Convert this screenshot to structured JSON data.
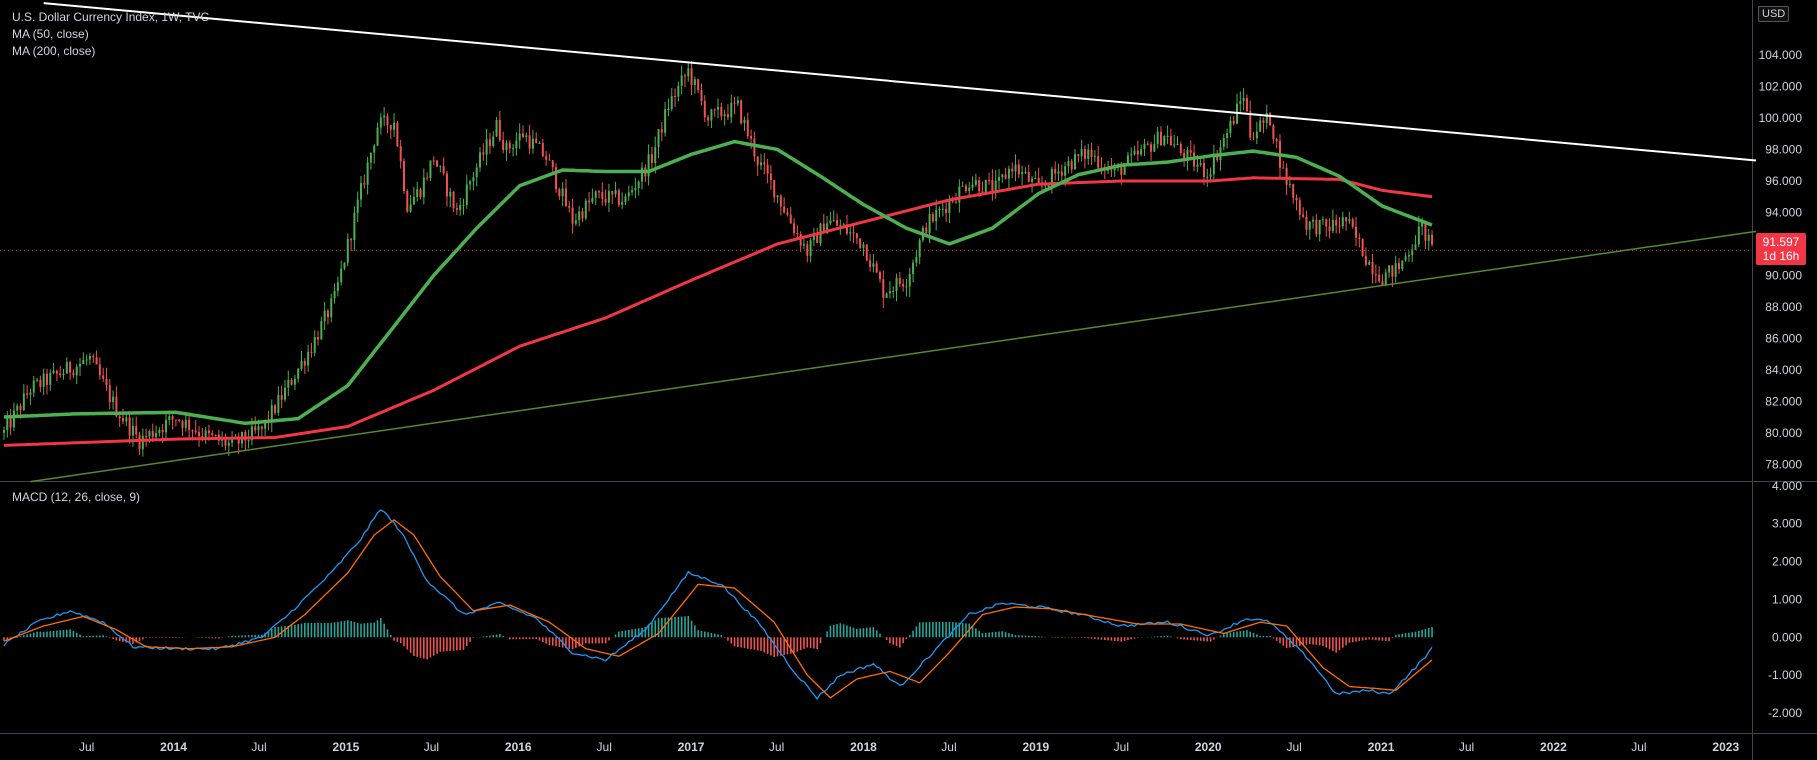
{
  "legend": {
    "symbol": "U.S. Dollar Currency Index, 1W, TVC",
    "ma50": "MA (50, close)",
    "ma200": "MA (200, close)",
    "macd": "MACD (12, 26, close, 9)"
  },
  "currency_button": "USD",
  "last_price": {
    "value": "91.597",
    "countdown": "1d 16h"
  },
  "colors": {
    "background": "#000000",
    "candle_up": "#4caf50",
    "candle_down": "#ef5350",
    "ma50": "#4caf50",
    "ma200": "#f23645",
    "trendline_upper": "#ffffff",
    "trendline_lower": "#558b2f",
    "macd_line": "#2196f3",
    "signal_line": "#ff6d00",
    "hist_pos": "#26a69a",
    "hist_neg": "#ef5350",
    "last_price": "#f23645",
    "axis_text": "#d1d4dc"
  },
  "chart_data": [
    {
      "type": "candlestick",
      "title": "U.S. Dollar Currency Index, 1W, TVC",
      "y_axis_ticks": [
        "104.000",
        "102.000",
        "100.000",
        "98.000",
        "96.000",
        "94.000",
        "92.000",
        "90.000",
        "88.000",
        "86.000",
        "84.000",
        "82.000",
        "80.000",
        "78.000"
      ],
      "ylim": [
        77,
        107.5
      ],
      "x_axis_ticks": [
        "Jul",
        "2014",
        "Jul",
        "2015",
        "Jul",
        "2016",
        "Jul",
        "2017",
        "Jul",
        "2018",
        "Jul",
        "2019",
        "Jul",
        "2020",
        "Jul",
        "2021",
        "Jul",
        "2022",
        "Jul",
        "2023"
      ],
      "x_anchor": {
        "start_week": "2013-01-07",
        "end_visible_week": "2023-03-06"
      },
      "price_path": [
        [
          "2013-01-07",
          80.0
        ],
        [
          "2013-03-04",
          82.8
        ],
        [
          "2013-05-20",
          84.0
        ],
        [
          "2013-07-08",
          84.7
        ],
        [
          "2013-09-02",
          81.5
        ],
        [
          "2013-10-21",
          79.5
        ],
        [
          "2014-01-06",
          81.0
        ],
        [
          "2014-03-10",
          79.8
        ],
        [
          "2014-05-05",
          79.2
        ],
        [
          "2014-07-07",
          80.2
        ],
        [
          "2014-09-01",
          83.0
        ],
        [
          "2014-10-20",
          85.5
        ],
        [
          "2014-12-08",
          88.5
        ],
        [
          "2015-01-26",
          94.5
        ],
        [
          "2015-03-09",
          99.5
        ],
        [
          "2015-04-13",
          99.8
        ],
        [
          "2015-05-11",
          94.5
        ],
        [
          "2015-06-08",
          95.5
        ],
        [
          "2015-07-06",
          97.5
        ],
        [
          "2015-08-24",
          94.0
        ],
        [
          "2015-09-21",
          96.0
        ],
        [
          "2015-11-16",
          99.5
        ],
        [
          "2015-12-07",
          98.0
        ],
        [
          "2016-01-11",
          99.0
        ],
        [
          "2016-02-29",
          97.5
        ],
        [
          "2016-04-25",
          93.5
        ],
        [
          "2016-06-13",
          95.0
        ],
        [
          "2016-08-15",
          94.8
        ],
        [
          "2016-10-10",
          97.5
        ],
        [
          "2016-11-14",
          100.8
        ],
        [
          "2016-12-26",
          103.0
        ],
        [
          "2017-02-06",
          100.0
        ],
        [
          "2017-04-10",
          100.7
        ],
        [
          "2017-05-22",
          97.3
        ],
        [
          "2017-06-26",
          95.5
        ],
        [
          "2017-08-07",
          93.0
        ],
        [
          "2017-09-04",
          91.5
        ],
        [
          "2017-10-16",
          93.5
        ],
        [
          "2017-11-20",
          93.0
        ],
        [
          "2018-01-01",
          92.0
        ],
        [
          "2018-02-12",
          89.0
        ],
        [
          "2018-04-02",
          89.8
        ],
        [
          "2018-05-14",
          93.2
        ],
        [
          "2018-06-25",
          94.5
        ],
        [
          "2018-08-13",
          96.0
        ],
        [
          "2018-10-08",
          95.5
        ],
        [
          "2018-11-12",
          97.0
        ],
        [
          "2019-01-07",
          95.5
        ],
        [
          "2019-03-04",
          97.0
        ],
        [
          "2019-04-22",
          97.8
        ],
        [
          "2019-06-17",
          96.5
        ],
        [
          "2019-08-12",
          97.8
        ],
        [
          "2019-09-30",
          99.0
        ],
        [
          "2019-11-04",
          97.8
        ],
        [
          "2019-12-30",
          96.5
        ],
        [
          "2020-02-17",
          99.5
        ],
        [
          "2020-03-16",
          101.5
        ],
        [
          "2020-03-30",
          99.0
        ],
        [
          "2020-05-11",
          100.0
        ],
        [
          "2020-06-08",
          96.5
        ],
        [
          "2020-07-27",
          93.3
        ],
        [
          "2020-09-07",
          93.0
        ],
        [
          "2020-10-19",
          93.5
        ],
        [
          "2020-12-07",
          90.8
        ],
        [
          "2021-01-04",
          89.9
        ],
        [
          "2021-02-08",
          90.5
        ],
        [
          "2021-03-29",
          93.1
        ],
        [
          "2021-04-19",
          91.597
        ]
      ],
      "series": [
        {
          "name": "MA (50, close)",
          "values": [
            [
              "2013-01-07",
              81.0
            ],
            [
              "2013-06-03",
              81.2
            ],
            [
              "2014-01-06",
              81.3
            ],
            [
              "2014-06-02",
              80.6
            ],
            [
              "2014-09-22",
              80.9
            ],
            [
              "2015-01-05",
              83.0
            ],
            [
              "2015-04-06",
              86.5
            ],
            [
              "2015-07-06",
              90.0
            ],
            [
              "2015-10-05",
              93.0
            ],
            [
              "2016-01-04",
              95.7
            ],
            [
              "2016-04-04",
              96.7
            ],
            [
              "2016-07-04",
              96.6
            ],
            [
              "2016-10-03",
              96.6
            ],
            [
              "2017-01-02",
              97.7
            ],
            [
              "2017-04-03",
              98.5
            ],
            [
              "2017-07-03",
              98.0
            ],
            [
              "2017-10-02",
              96.3
            ],
            [
              "2018-01-01",
              94.5
            ],
            [
              "2018-04-02",
              93.0
            ],
            [
              "2018-07-02",
              92.0
            ],
            [
              "2018-10-01",
              93.0
            ],
            [
              "2019-01-07",
              95.2
            ],
            [
              "2019-04-01",
              96.4
            ],
            [
              "2019-07-01",
              97.0
            ],
            [
              "2019-10-07",
              97.2
            ],
            [
              "2020-01-06",
              97.6
            ],
            [
              "2020-04-06",
              97.9
            ],
            [
              "2020-07-06",
              97.5
            ],
            [
              "2020-10-05",
              96.3
            ],
            [
              "2021-01-04",
              94.4
            ],
            [
              "2021-04-19",
              93.2
            ]
          ]
        },
        {
          "name": "MA (200, close)",
          "values": [
            [
              "2013-01-07",
              79.2
            ],
            [
              "2014-01-06",
              79.6
            ],
            [
              "2014-08-04",
              79.7
            ],
            [
              "2015-01-05",
              80.4
            ],
            [
              "2015-07-06",
              82.7
            ],
            [
              "2016-01-04",
              85.5
            ],
            [
              "2016-07-04",
              87.3
            ],
            [
              "2017-01-02",
              89.7
            ],
            [
              "2017-07-03",
              92.0
            ],
            [
              "2018-01-01",
              93.4
            ],
            [
              "2018-07-02",
              94.8
            ],
            [
              "2019-01-07",
              95.8
            ],
            [
              "2019-07-01",
              96.0
            ],
            [
              "2020-01-06",
              96.0
            ],
            [
              "2020-04-06",
              96.2
            ],
            [
              "2020-10-05",
              96.1
            ],
            [
              "2021-01-04",
              95.4
            ],
            [
              "2021-04-19",
              95.0
            ]
          ]
        }
      ],
      "trendlines": [
        {
          "name": "upper",
          "from": [
            "2013-04-01",
            107.3
          ],
          "to": [
            "2023-03-06",
            97.3
          ]
        },
        {
          "name": "lower",
          "from": [
            "2013-03-04",
            76.9
          ],
          "to": [
            "2023-03-06",
            92.8
          ]
        }
      ]
    },
    {
      "type": "line",
      "title": "MACD (12, 26, close, 9)",
      "y_axis_ticks": [
        "4.000",
        "3.000",
        "2.000",
        "1.000",
        "0.000",
        "-1.000",
        "-2.000"
      ],
      "ylim": [
        -2.5,
        4.1
      ],
      "series": [
        {
          "name": "MACD",
          "values": [
            [
              "2013-01-07",
              -0.2
            ],
            [
              "2013-03-18",
              0.4
            ],
            [
              "2013-05-27",
              0.7
            ],
            [
              "2013-08-05",
              0.4
            ],
            [
              "2013-10-07",
              -0.25
            ],
            [
              "2014-01-06",
              -0.3
            ],
            [
              "2014-04-07",
              -0.3
            ],
            [
              "2014-07-07",
              0.0
            ],
            [
              "2014-09-01",
              0.6
            ],
            [
              "2014-12-01",
              1.7
            ],
            [
              "2015-02-02",
              2.6
            ],
            [
              "2015-03-16",
              3.4
            ],
            [
              "2015-04-27",
              2.8
            ],
            [
              "2015-06-22",
              1.5
            ],
            [
              "2015-09-07",
              0.6
            ],
            [
              "2015-11-23",
              0.9
            ],
            [
              "2016-02-08",
              0.5
            ],
            [
              "2016-04-25",
              -0.4
            ],
            [
              "2016-07-04",
              -0.6
            ],
            [
              "2016-09-26",
              0.2
            ],
            [
              "2016-12-26",
              1.7
            ],
            [
              "2017-03-06",
              1.4
            ],
            [
              "2017-05-29",
              0.3
            ],
            [
              "2017-08-07",
              -0.9
            ],
            [
              "2017-09-25",
              -1.6
            ],
            [
              "2017-11-13",
              -1.0
            ],
            [
              "2018-01-22",
              -0.7
            ],
            [
              "2018-03-19",
              -1.3
            ],
            [
              "2018-05-28",
              -0.4
            ],
            [
              "2018-08-13",
              0.6
            ],
            [
              "2018-10-22",
              0.9
            ],
            [
              "2019-01-07",
              0.8
            ],
            [
              "2019-04-08",
              0.6
            ],
            [
              "2019-07-01",
              0.3
            ],
            [
              "2019-10-07",
              0.4
            ],
            [
              "2020-01-06",
              0.05
            ],
            [
              "2020-03-23",
              0.5
            ],
            [
              "2020-05-11",
              0.4
            ],
            [
              "2020-08-03",
              -0.6
            ],
            [
              "2020-09-28",
              -1.5
            ],
            [
              "2020-12-07",
              -1.4
            ],
            [
              "2021-01-18",
              -1.5
            ],
            [
              "2021-03-15",
              -0.8
            ],
            [
              "2021-04-19",
              -0.3
            ]
          ]
        },
        {
          "name": "Signal",
          "values": [
            [
              "2013-01-07",
              -0.1
            ],
            [
              "2013-04-01",
              0.3
            ],
            [
              "2013-06-24",
              0.55
            ],
            [
              "2013-09-02",
              0.2
            ],
            [
              "2013-11-04",
              -0.25
            ],
            [
              "2014-02-03",
              -0.3
            ],
            [
              "2014-05-05",
              -0.25
            ],
            [
              "2014-08-04",
              0.0
            ],
            [
              "2014-10-06",
              0.6
            ],
            [
              "2015-01-05",
              1.7
            ],
            [
              "2015-03-02",
              2.7
            ],
            [
              "2015-04-13",
              3.1
            ],
            [
              "2015-05-25",
              2.7
            ],
            [
              "2015-07-20",
              1.6
            ],
            [
              "2015-09-28",
              0.7
            ],
            [
              "2015-12-14",
              0.85
            ],
            [
              "2016-03-07",
              0.4
            ],
            [
              "2016-05-23",
              -0.3
            ],
            [
              "2016-08-01",
              -0.5
            ],
            [
              "2016-10-24",
              0.1
            ],
            [
              "2017-01-16",
              1.4
            ],
            [
              "2017-04-03",
              1.3
            ],
            [
              "2017-06-26",
              0.4
            ],
            [
              "2017-09-04",
              -1.0
            ],
            [
              "2017-10-23",
              -1.6
            ],
            [
              "2017-12-18",
              -1.1
            ],
            [
              "2018-02-26",
              -0.9
            ],
            [
              "2018-04-30",
              -1.2
            ],
            [
              "2018-07-02",
              -0.4
            ],
            [
              "2018-09-10",
              0.6
            ],
            [
              "2018-11-19",
              0.8
            ],
            [
              "2019-02-04",
              0.75
            ],
            [
              "2019-05-06",
              0.55
            ],
            [
              "2019-08-05",
              0.35
            ],
            [
              "2019-11-04",
              0.35
            ],
            [
              "2020-02-03",
              0.1
            ],
            [
              "2020-04-20",
              0.4
            ],
            [
              "2020-06-15",
              0.3
            ],
            [
              "2020-08-31",
              -0.8
            ],
            [
              "2020-10-26",
              -1.3
            ],
            [
              "2020-12-21",
              -1.35
            ],
            [
              "2021-02-01",
              -1.4
            ],
            [
              "2021-04-19",
              -0.6
            ]
          ]
        }
      ]
    }
  ]
}
